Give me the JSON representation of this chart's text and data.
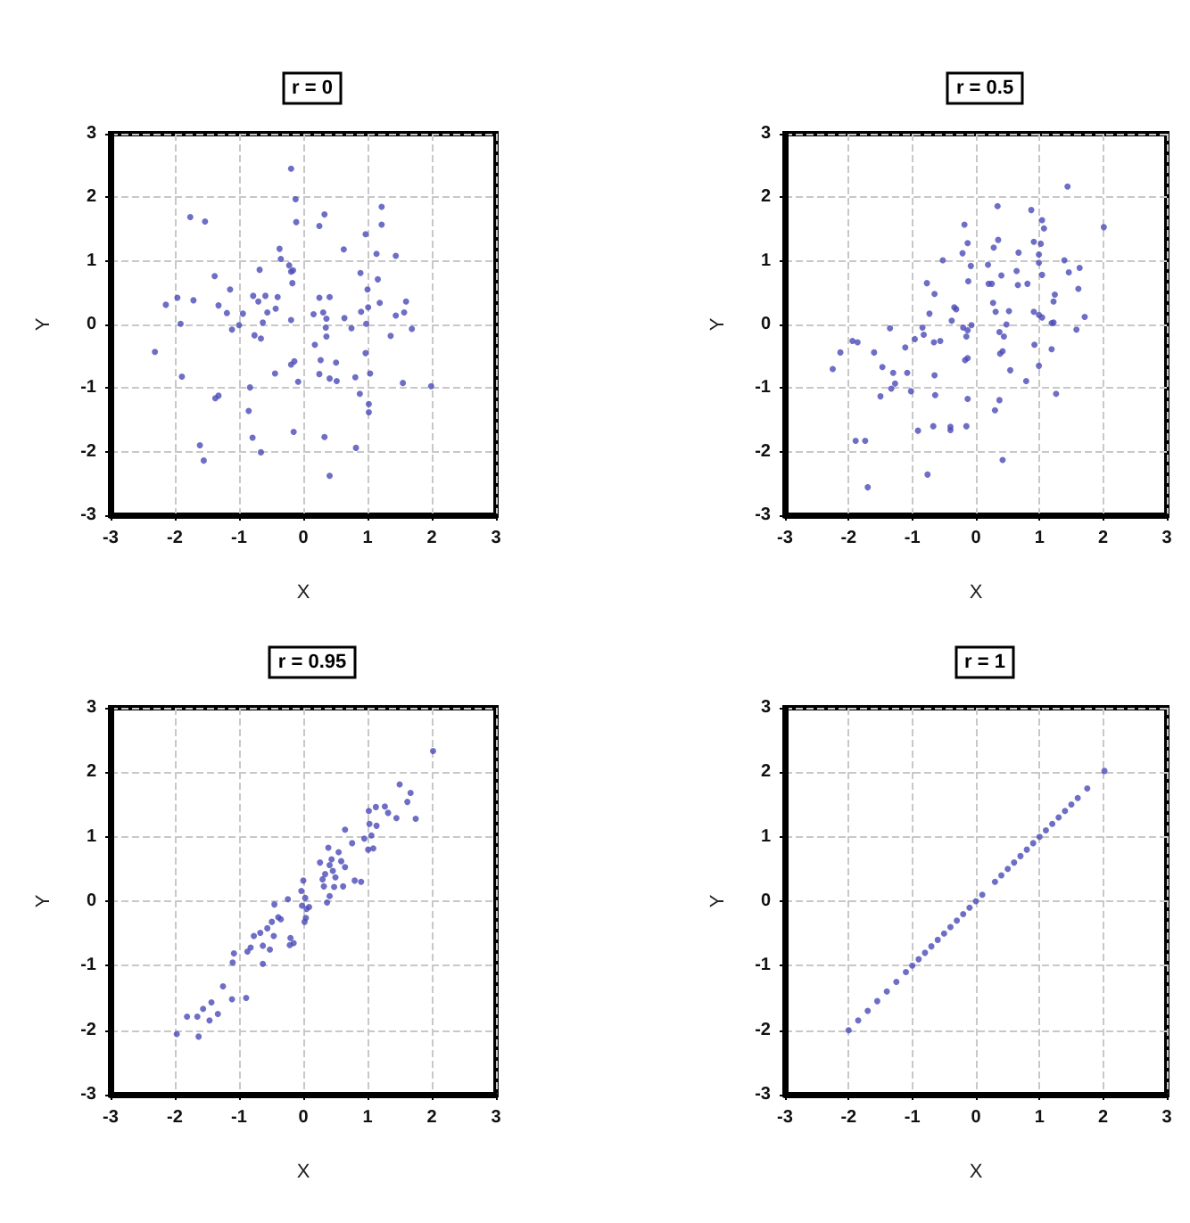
{
  "chart_data": [
    {
      "type": "scatter",
      "title": "r = 0",
      "xlabel": "X",
      "ylabel": "Y",
      "color": "#4a4ab8",
      "marker": "circle",
      "grid": true,
      "xlim": [
        -3,
        3
      ],
      "ylim": [
        -3,
        3
      ],
      "xticks": [
        -3,
        -2,
        -1,
        0,
        1,
        2,
        3
      ],
      "yticks": [
        -3,
        -2,
        -1,
        0,
        1,
        2,
        3
      ],
      "x": [
        -0.19,
        -0.12,
        -0.11,
        -1.76,
        -1.53,
        0.25,
        0.33,
        1.22,
        1.22,
        0.97,
        0.63,
        1.14,
        1.44,
        -0.37,
        -0.35,
        -0.22,
        -0.19,
        -0.16,
        -0.68,
        -1.38,
        -1.14,
        -0.17,
        0.89,
        1.16,
        1.0,
        -2.14,
        -1.96,
        -1.71,
        -1.32,
        -0.78,
        -0.7,
        -0.59,
        -0.4,
        0.25,
        0.41,
        1.19,
        1.6,
        0.9,
        1.01,
        1.44,
        1.57,
        -1.19,
        -0.94,
        -0.56,
        -0.43,
        -0.19,
        0.16,
        0.31,
        0.36,
        0.64,
        0.98,
        1.36,
        1.69,
        -1.91,
        -1.11,
        -1.0,
        -0.76,
        -0.66,
        -0.63,
        0.35,
        0.75,
        0.36,
        -2.31,
        0.18,
        0.97,
        0.27,
        0.51,
        -0.14,
        -0.19,
        -0.44,
        0.25,
        0.41,
        0.52,
        -0.08,
        0.81,
        1.04,
        1.55,
        1.99,
        -1.89,
        -0.83,
        0.88,
        -1.32,
        -1.37,
        1.02,
        1.02,
        -0.85,
        -0.79,
        -0.15,
        0.33,
        0.82,
        -0.66,
        -1.61,
        -1.55,
        0.41
      ],
      "values": [
        2.45,
        1.97,
        1.61,
        1.69,
        1.62,
        1.55,
        1.73,
        1.85,
        1.57,
        1.42,
        1.18,
        1.11,
        1.08,
        1.19,
        1.03,
        0.93,
        0.83,
        0.85,
        0.86,
        0.76,
        0.55,
        0.65,
        0.81,
        0.71,
        0.55,
        0.31,
        0.42,
        0.38,
        0.3,
        0.45,
        0.36,
        0.45,
        0.43,
        0.42,
        0.43,
        0.34,
        0.36,
        0.2,
        0.27,
        0.14,
        0.19,
        0.18,
        0.17,
        0.19,
        0.25,
        0.07,
        0.16,
        0.19,
        0.09,
        0.1,
        0.01,
        -0.18,
        -0.07,
        0.01,
        -0.08,
        -0.01,
        -0.17,
        -0.22,
        0.03,
        -0.05,
        -0.06,
        -0.19,
        -0.43,
        -0.32,
        -0.45,
        -0.56,
        -0.6,
        -0.58,
        -0.63,
        -0.77,
        -0.78,
        -0.85,
        -0.89,
        -0.9,
        -0.83,
        -0.77,
        -0.92,
        -0.97,
        -0.82,
        -0.99,
        -1.09,
        -1.12,
        -1.16,
        -1.25,
        -1.38,
        -1.36,
        -1.78,
        -1.69,
        -1.77,
        -1.94,
        -2.01,
        -1.9,
        -2.14,
        -2.38
      ]
    },
    {
      "type": "scatter",
      "title": "r = 0.5",
      "xlabel": "X",
      "ylabel": "Y",
      "color": "#4a4ab8",
      "marker": "circle",
      "grid": true,
      "xlim": [
        -3,
        3
      ],
      "ylim": [
        -3,
        3
      ],
      "xticks": [
        -3,
        -2,
        -1,
        0,
        1,
        2,
        3
      ],
      "yticks": [
        -3,
        -2,
        -1,
        0,
        1,
        2,
        3
      ],
      "x": [
        1.44,
        0.34,
        0.87,
        1.04,
        1.07,
        2.01,
        -0.18,
        -0.13,
        -0.21,
        0.28,
        0.35,
        0.67,
        0.91,
        1.02,
        0.99,
        0.99,
        -0.52,
        -0.08,
        0.19,
        0.2,
        0.25,
        0.4,
        0.64,
        0.66,
        0.81,
        1.04,
        1.39,
        1.46,
        1.63,
        1.61,
        1.24,
        1.22,
        -0.77,
        -0.65,
        -0.12,
        -0.34,
        -0.31,
        -0.73,
        0.27,
        0.31,
        0.52,
        0.91,
        0.99,
        1.04,
        1.71,
        1.22,
        1.19,
        1.58,
        0.48,
        -1.35,
        -0.84,
        -0.82,
        -0.56,
        -0.66,
        -0.38,
        -0.2,
        -0.13,
        -0.07,
        -0.15,
        0.37,
        0.44,
        0.38,
        0.42,
        0.92,
        1.19,
        0.99,
        0.54,
        0.79,
        -0.13,
        -0.17,
        -1.11,
        -0.96,
        -1.94,
        -1.86,
        -2.13,
        -2.25,
        -1.6,
        -1.47,
        -1.3,
        -1.33,
        -1.27,
        -1.5,
        -1.08,
        -1.02,
        -0.65,
        -0.64,
        -0.13,
        0.37,
        0.3,
        1.26,
        -0.91,
        -0.67,
        -0.4,
        -0.4,
        -0.15,
        -1.89,
        -1.74,
        0.42,
        -0.76,
        -1.7
      ],
      "values": [
        2.17,
        1.86,
        1.8,
        1.64,
        1.51,
        1.53,
        1.57,
        1.28,
        1.12,
        1.21,
        1.33,
        1.13,
        1.3,
        1.27,
        1.1,
        0.97,
        1.01,
        0.92,
        0.94,
        0.64,
        0.64,
        0.77,
        0.84,
        0.62,
        0.64,
        0.78,
        1.01,
        0.82,
        0.89,
        0.56,
        0.47,
        0.36,
        0.65,
        0.48,
        0.68,
        0.27,
        0.24,
        0.17,
        0.34,
        0.2,
        0.21,
        0.2,
        0.15,
        0.11,
        0.12,
        0.03,
        0.02,
        -0.08,
        0.0,
        -0.06,
        -0.05,
        -0.16,
        -0.26,
        -0.28,
        0.06,
        -0.05,
        -0.09,
        -0.01,
        -0.19,
        -0.12,
        -0.19,
        -0.46,
        -0.42,
        -0.32,
        -0.39,
        -0.65,
        -0.72,
        -0.89,
        -0.53,
        -0.56,
        -0.36,
        -0.23,
        -0.26,
        -0.28,
        -0.44,
        -0.7,
        -0.44,
        -0.67,
        -0.76,
        -1.01,
        -0.93,
        -1.13,
        -0.76,
        -1.05,
        -0.8,
        -1.11,
        -1.17,
        -1.19,
        -1.35,
        -1.09,
        -1.67,
        -1.6,
        -1.61,
        -1.66,
        -1.6,
        -1.83,
        -1.83,
        -2.13,
        -2.36,
        -2.56
      ]
    },
    {
      "type": "scatter",
      "title": "r = 0.95",
      "xlabel": "X",
      "ylabel": "Y",
      "color": "#4a4ab8",
      "marker": "circle",
      "grid": true,
      "xlim": [
        -3,
        3
      ],
      "ylim": [
        -3,
        3
      ],
      "xticks": [
        -3,
        -2,
        -1,
        0,
        1,
        2,
        3
      ],
      "yticks": [
        -3,
        -2,
        -1,
        0,
        1,
        2,
        3
      ],
      "x": [
        2.02,
        1.5,
        1.67,
        1.62,
        1.45,
        1.75,
        1.13,
        1.02,
        1.27,
        1.32,
        1.03,
        1.14,
        0.95,
        1.06,
        1.01,
        1.09,
        0.65,
        0.39,
        0.55,
        0.44,
        0.59,
        0.26,
        0.41,
        0.46,
        0.34,
        0.5,
        0.65,
        0.8,
        0.9,
        0.62,
        0.48,
        0.32,
        0.41,
        0.37,
        0.0,
        -0.03,
        0.03,
        -0.02,
        0.05,
        0.04,
        0.02,
        -0.24,
        -0.39,
        -0.35,
        -0.45,
        -0.49,
        -0.56,
        -0.46,
        -0.67,
        -0.63,
        -0.52,
        -0.63,
        -0.87,
        -0.82,
        -0.2,
        -0.15,
        -1.08,
        -1.1,
        -0.89,
        -1.25,
        -1.11,
        -1.43,
        -1.33,
        -1.56,
        -1.46,
        -1.65,
        -1.81,
        -1.97,
        -1.63,
        -0.21,
        -0.77,
        0.09,
        0.3,
        0.76
      ],
      "values": [
        2.33,
        1.81,
        1.68,
        1.54,
        1.29,
        1.28,
        1.46,
        1.4,
        1.47,
        1.37,
        1.2,
        1.17,
        0.97,
        1.02,
        0.8,
        0.82,
        1.11,
        0.83,
        0.76,
        0.65,
        0.62,
        0.6,
        0.56,
        0.47,
        0.42,
        0.37,
        0.53,
        0.32,
        0.3,
        0.23,
        0.22,
        0.23,
        0.08,
        -0.02,
        0.32,
        0.16,
        0.05,
        -0.07,
        -0.12,
        -0.26,
        -0.32,
        0.03,
        -0.25,
        -0.28,
        -0.05,
        -0.32,
        -0.42,
        -0.54,
        -0.49,
        -0.69,
        -0.75,
        -0.97,
        -0.78,
        -0.72,
        -0.57,
        -0.65,
        -0.81,
        -0.95,
        -1.5,
        -1.32,
        -1.52,
        -1.57,
        -1.75,
        -1.67,
        -1.85,
        -1.79,
        -1.79,
        -2.06,
        -2.1,
        -0.68,
        -0.54,
        -0.09,
        0.34,
        0.9
      ]
    },
    {
      "type": "scatter",
      "title": "r = 1",
      "xlabel": "X",
      "ylabel": "Y",
      "color": "#4a4ab8",
      "marker": "circle",
      "grid": true,
      "xlim": [
        -3,
        3
      ],
      "ylim": [
        -3,
        3
      ],
      "xticks": [
        -3,
        -2,
        -1,
        0,
        1,
        2,
        3
      ],
      "yticks": [
        -3,
        -2,
        -1,
        0,
        1,
        2,
        3
      ],
      "x": [
        -2.0,
        -1.85,
        -1.7,
        -1.55,
        -1.4,
        -1.25,
        -1.1,
        -1.0,
        -0.9,
        -0.8,
        -0.7,
        -0.6,
        -0.5,
        -0.4,
        -0.3,
        -0.2,
        -0.1,
        0.0,
        0.1,
        0.3,
        0.4,
        0.5,
        0.6,
        0.7,
        0.8,
        0.9,
        1.0,
        1.1,
        1.2,
        1.3,
        1.4,
        1.5,
        1.6,
        1.75,
        2.02
      ],
      "values": [
        -2.0,
        -1.85,
        -1.7,
        -1.55,
        -1.4,
        -1.25,
        -1.1,
        -1.0,
        -0.9,
        -0.8,
        -0.7,
        -0.6,
        -0.5,
        -0.4,
        -0.3,
        -0.2,
        -0.1,
        0.0,
        0.1,
        0.3,
        0.4,
        0.5,
        0.6,
        0.7,
        0.8,
        0.9,
        1.0,
        1.1,
        1.2,
        1.3,
        1.4,
        1.5,
        1.6,
        1.75,
        2.02
      ]
    }
  ]
}
